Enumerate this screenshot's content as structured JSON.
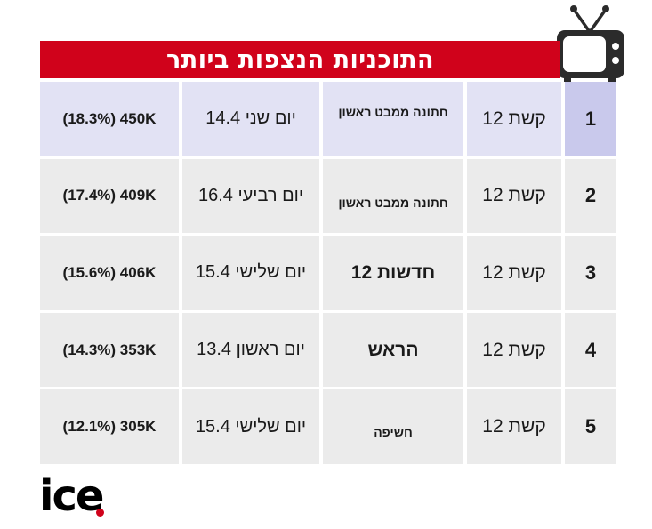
{
  "header": {
    "title": "התוכניות הנצפות ביותר",
    "icon": "tv-icon"
  },
  "rows": [
    {
      "rank": "1",
      "channel": "קשת 12",
      "show": "חתונה ממבט ראשון",
      "day": "יום שני 14.4",
      "rating": "(18.3%) 450K"
    },
    {
      "rank": "2",
      "channel": "קשת 12",
      "show": "חתונה ממבט ראשון",
      "day": "יום רביעי 16.4",
      "rating": "(17.4%) 409K"
    },
    {
      "rank": "3",
      "channel": "קשת 12",
      "show": "חדשות 12",
      "day": "יום שלישי 15.4",
      "rating": "(15.6%) 406K"
    },
    {
      "rank": "4",
      "channel": "קשת 12",
      "show": "הראש",
      "day": "יום ראשון 13.4",
      "rating": "(14.3%) 353K"
    },
    {
      "rank": "5",
      "channel": "קשת 12",
      "show": "חשיפה",
      "day": "יום שלישי 15.4",
      "rating": "(12.1%) 305K"
    }
  ],
  "footer": {
    "logo_text": "ice",
    "accent_color": "#d0021b"
  }
}
